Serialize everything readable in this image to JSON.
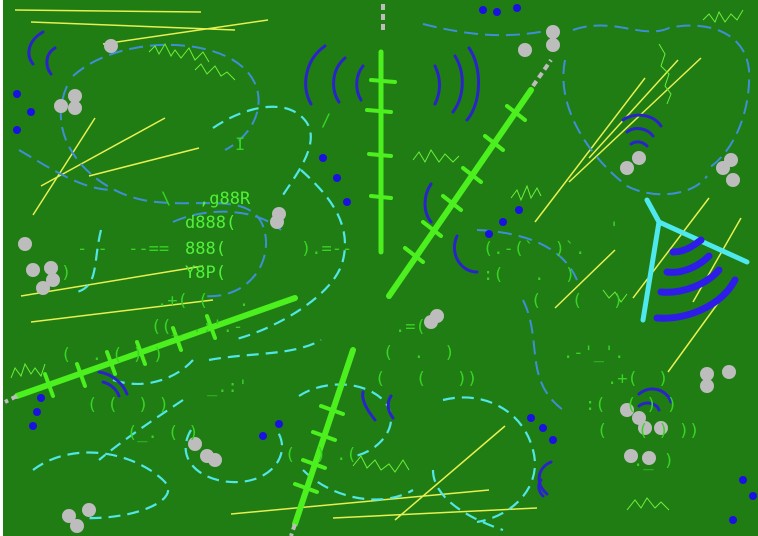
{
  "palette": {
    "background": "#1f7d14",
    "ascii_text": "#38d424",
    "track_green": "#4cf01e",
    "trail_cyan": "#52e6e6",
    "trail_blue": "#3f8fd6",
    "line_yellow": "#e7f052",
    "arc_blue": "#2a24c8",
    "dot_blue": "#1a10e0",
    "rock_grey": "#bdbdbd",
    "antenna_cyan": "#4fe8ee",
    "ant_blue": "#2e1de8"
  },
  "map": {
    "icon_names": [
      "rock-pebble-icon",
      "blue-seed-dot-icon",
      "radio-antenna-icon",
      "signal-arc-icon",
      "railroad-track-icon"
    ]
  },
  "ascii": {
    "logo_line_1": ",g88R",
    "logo_line_2": "d888(",
    "logo_line_3": "888(",
    "logo_line_4": "Y8P(",
    "bar_glyph": "I",
    "tilde_left": "\\",
    "slash_top": "/",
    "dash_arrow_left": "- -  --==",
    "dash_arrow_right": ").=--",
    "paren_block_a": "(  . ( ) )",
    "paren_block_b": ".+( (   .",
    "paren_block_c": "((_ .:'.-",
    "paren_block_d": ".=(",
    "paren_block_e": "(  .  )",
    "paren_block_f": "(   (   ))",
    "paren_block_g": "( (  ) )",
    "paren_block_h": ".-'_'.",
    "paren_block_i": "(.-(`  )`.",
    "paren_block_j": ":(   .  )",
    "paren_block_k": "(   (   )",
    "paren_block_l": ".+(  )",
    "paren_block_m": ":(  ( ) )",
    "paren_block_n": "(   ( ) ))",
    "paren_block_o": "_.:'",
    "paren_block_p": "(_. ( )",
    "paren_block_q": "(  ) .(",
    "paren_block_r": "._ )",
    "small_paren": ")",
    "tick_mark": "'"
  }
}
